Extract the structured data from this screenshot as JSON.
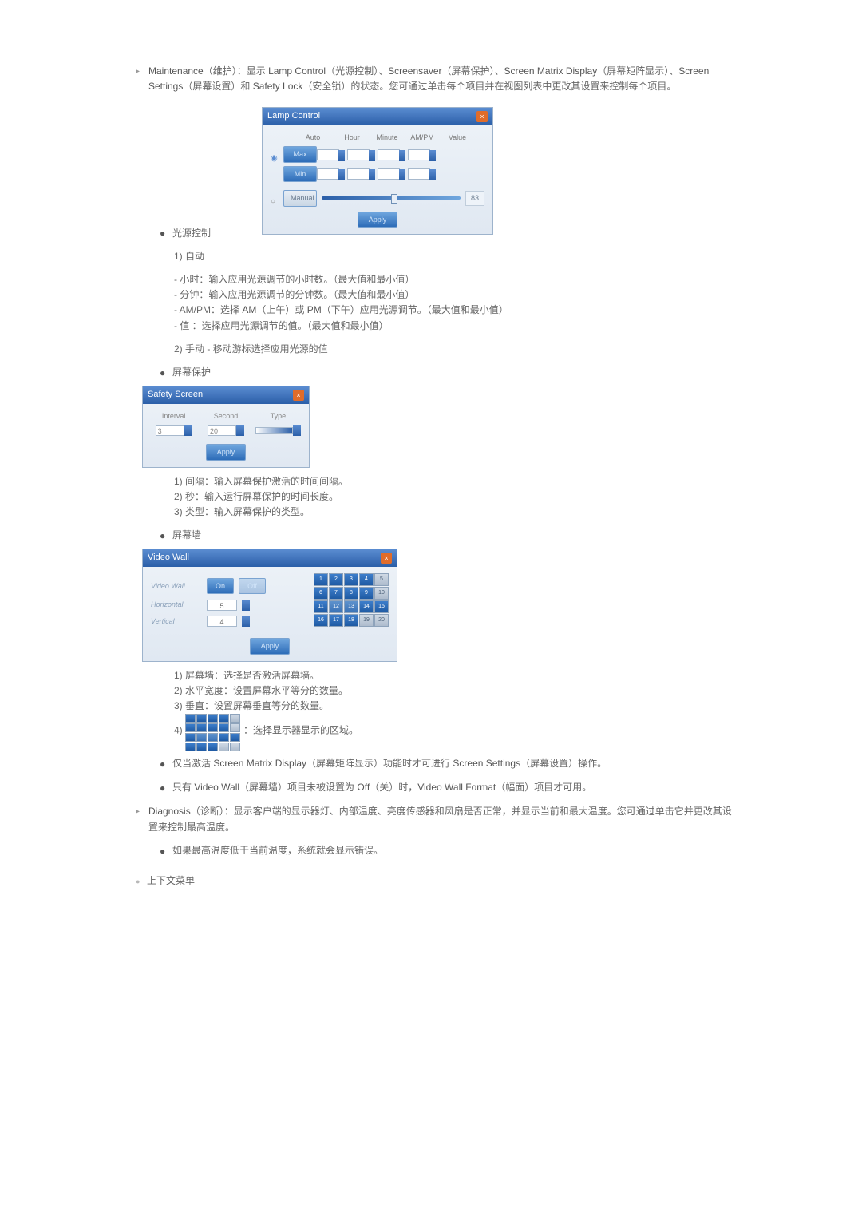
{
  "maintenance": {
    "text1a": "Maintenance",
    "text1b": "（维护）：显示 ",
    "text1c": "Lamp Control",
    "text1d": "（光源控制）、",
    "text1e": "Screensaver",
    "text1f": "（屏幕保护）、",
    "text1g": "Screen Matrix Display",
    "text1h": "（屏幕矩阵显示）、",
    "text1i": "Screen Settings",
    "text1j": "（屏幕设置）和 ",
    "text1k": "Safety Lock",
    "text1l": "（安全锁）的状态。您可通过单击每个项目并在视图列表中更改其设置来控制每个项目。"
  },
  "lamp": {
    "title": "Lamp Control",
    "auto": "Auto",
    "hour": "Hour",
    "minute": "Minute",
    "ampm": "AM/PM",
    "value": "Value",
    "max": "Max",
    "min": "Min",
    "manual": "Manual",
    "manual_val": "83",
    "apply": "Apply"
  },
  "light_ctrl": "光源控制",
  "auto": {
    "h": "1) 自动",
    "b1": "- 小时：输入应用光源调节的小时数。（最大值和最小值）",
    "b2": "- 分钟：输入应用光源调节的分钟数。（最大值和最小值）",
    "b3a": "- AM/PM：选择 ",
    "b3b": "AM",
    "b3c": "（上午）或 ",
    "b3d": "PM",
    "b3e": "（下午）应用光源调节。（最大值和最小值）",
    "b4": "- 值 ：选择应用光源调节的值。（最大值和最小值）"
  },
  "manual_line": "2) 手动 - 移动游标选择应用光源的值",
  "safety": {
    "label": "屏幕保护",
    "title": "Safety Screen",
    "interval": "Interval",
    "second": "Second",
    "type": "Type",
    "interval_val": "3",
    "second_val": "20",
    "apply": "Apply",
    "d1": "1) 间隔：输入屏幕保护激活的时间间隔。",
    "d2": "2) 秒：输入运行屏幕保护的时间长度。",
    "d3": "3) 类型：输入屏幕保护的类型。"
  },
  "wall": {
    "label": "屏幕墙",
    "title": "Video Wall",
    "vw": "Video Wall",
    "on": "On",
    "off": "Off",
    "horizontal": "Horizontal",
    "vertical": "Vertical",
    "h_val": "5",
    "v_val": "4",
    "apply": "Apply",
    "d1": "1) 屏幕墙：选择是否激活屏幕墙。",
    "d2": "2) 水平宽度：设置屏幕水平等分的数量。",
    "d3": "3) 垂直：设置屏幕垂直等分的数量。",
    "d4a": "4) ",
    "d4b": "：选择显示器显示的区域。"
  },
  "note1a": "仅当激活 ",
  "note1b": "Screen Matrix Display",
  "note1c": "（屏幕矩阵显示）功能时才可进行 ",
  "note1d": "Screen Settings",
  "note1e": "（屏幕设置）操作。",
  "note2a": "只有 ",
  "note2b": "Video Wall",
  "note2c": "（屏幕墙）项目未被设置为 ",
  "note2d": "Off",
  "note2e": "（关）时，",
  "note2f": "Video Wall Format",
  "note2g": "（幅面）项目才可用。",
  "diag": {
    "a": "Diagnosis",
    "b": "（诊断）：显示客户端的显示器灯、内部温度、亮度传感器和风扇是否正常，并显示当前和最大温度。您可通过单击它并更改其设置来控制最高温度。",
    "note": "如果最高温度低于当前温度，系统就会显示错误。"
  },
  "context_menu": "上下文菜单",
  "grid_active": [
    1,
    2,
    3,
    4,
    6,
    7,
    8,
    9,
    11,
    14,
    15,
    16,
    17,
    18
  ],
  "grid_mid": [
    12,
    13
  ]
}
